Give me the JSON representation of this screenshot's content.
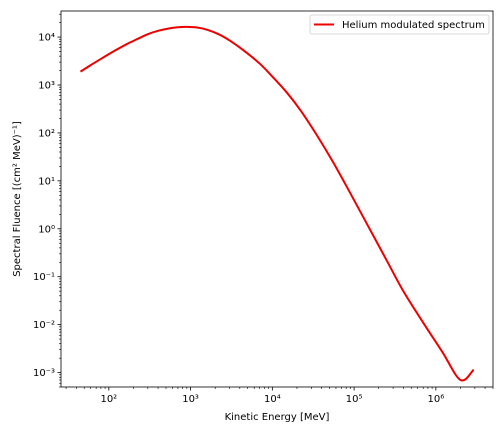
{
  "chart_data": {
    "type": "line",
    "xlabel": "Kinetic Energy [MeV]",
    "ylabel": "Spectral Fluence [(cm² MeV)⁻¹]",
    "xscale": "log",
    "yscale": "log",
    "xlim": [
      26,
      5000000
    ],
    "ylim": [
      0.0005,
      35000
    ],
    "grid": false,
    "legend_position": "top-right",
    "x_tick_labels": [
      "10²",
      "10³",
      "10⁴",
      "10⁵",
      "10⁶"
    ],
    "y_tick_labels": [
      "10⁻³",
      "10⁻²",
      "10⁻¹",
      "10⁰",
      "10¹",
      "10²",
      "10³",
      "10⁴"
    ],
    "series": [
      {
        "name": "Helium modulated spectrum",
        "color": "#ee0000",
        "x": [
          45,
          60,
          80,
          100,
          130,
          170,
          220,
          300,
          400,
          550,
          700,
          900,
          1200,
          1600,
          2200,
          3000,
          4500,
          7000,
          10000,
          15000,
          22000,
          35000,
          55000,
          90000,
          150000,
          250000,
          400000,
          700000,
          1200000,
          2000000,
          2900000
        ],
        "values": [
          1900,
          2600,
          3500,
          4400,
          5700,
          7300,
          9000,
          11500,
          13500,
          15200,
          16000,
          16300,
          15800,
          14200,
          11500,
          8500,
          5200,
          2800,
          1500,
          700,
          300,
          90,
          25,
          5.5,
          1.1,
          0.22,
          0.05,
          0.011,
          0.0027,
          0.0007,
          0.00115
        ]
      }
    ]
  }
}
